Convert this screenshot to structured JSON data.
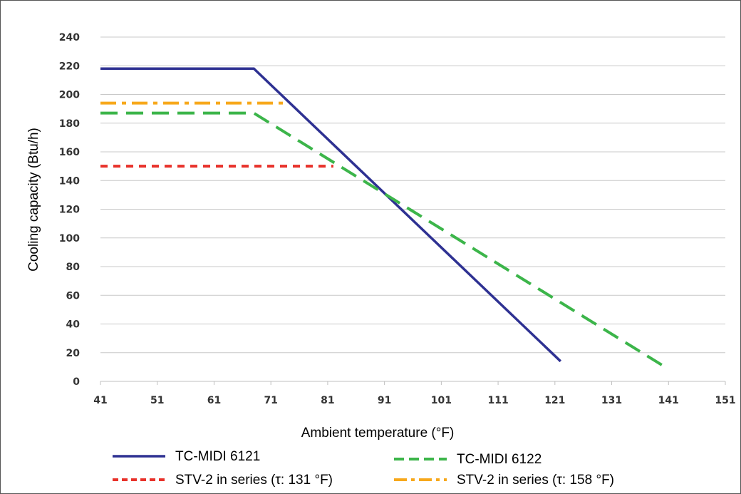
{
  "chart_data": {
    "type": "line",
    "title": "",
    "xlabel": "Ambient temperature (°F)",
    "ylabel": "Cooling capacity (Btu/h)",
    "xlim": [
      41,
      151
    ],
    "ylim": [
      0,
      240
    ],
    "xticks": [
      41,
      51,
      61,
      71,
      81,
      91,
      101,
      111,
      121,
      131,
      141,
      151
    ],
    "yticks": [
      0,
      20,
      40,
      60,
      80,
      100,
      120,
      140,
      160,
      180,
      200,
      220,
      240
    ],
    "grid": "horizontal",
    "legend_position": "bottom",
    "series": [
      {
        "name": "TC-MIDI 6121",
        "color": "#2e3192",
        "style": "solid",
        "x": [
          41,
          68,
          122
        ],
        "y": [
          218,
          218,
          14
        ]
      },
      {
        "name": "TC-MIDI 6122",
        "color": "#3cb54a",
        "style": "dashed",
        "x": [
          41,
          68,
          140
        ],
        "y": [
          187,
          187,
          11
        ]
      },
      {
        "name": "STV-2 in series (τ: 131 °F)",
        "color": "#e8312a",
        "style": "dotted",
        "x": [
          41,
          82
        ],
        "y": [
          150,
          150
        ]
      },
      {
        "name": "STV-2 in series (τ: 158 °F)",
        "color": "#f7a81b",
        "style": "dashdot",
        "x": [
          41,
          74
        ],
        "y": [
          194,
          194
        ]
      }
    ]
  }
}
